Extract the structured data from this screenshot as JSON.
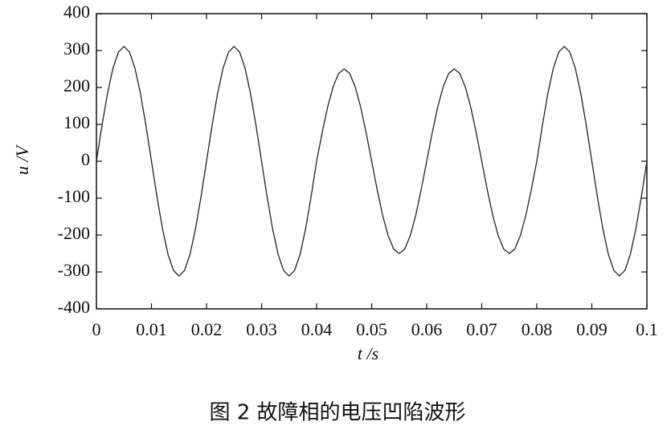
{
  "chart_data": {
    "type": "line",
    "caption": "图 2   故障相的电压凹陷波形",
    "xlabel": "t /s",
    "ylabel": "u /V",
    "x": [
      0,
      0.001,
      0.002,
      0.003,
      0.004,
      0.005,
      0.006,
      0.007,
      0.008,
      0.009,
      0.01,
      0.011,
      0.012,
      0.013,
      0.014,
      0.015,
      0.016,
      0.017,
      0.018,
      0.019,
      0.02,
      0.021,
      0.022,
      0.023,
      0.024,
      0.025,
      0.026,
      0.027,
      0.028,
      0.029,
      0.03,
      0.031,
      0.032,
      0.033,
      0.034,
      0.035,
      0.036,
      0.037,
      0.038,
      0.039,
      0.04,
      0.041,
      0.042,
      0.043,
      0.044,
      0.045,
      0.046,
      0.047,
      0.048,
      0.049,
      0.05,
      0.051,
      0.052,
      0.053,
      0.054,
      0.055,
      0.056,
      0.057,
      0.058,
      0.059,
      0.06,
      0.061,
      0.062,
      0.063,
      0.064,
      0.065,
      0.066,
      0.067,
      0.068,
      0.069,
      0.07,
      0.071,
      0.072,
      0.073,
      0.074,
      0.075,
      0.076,
      0.077,
      0.078,
      0.079,
      0.08,
      0.081,
      0.082,
      0.083,
      0.084,
      0.085,
      0.086,
      0.087,
      0.088,
      0.089,
      0.09,
      0.091,
      0.092,
      0.093,
      0.094,
      0.095,
      0.096,
      0.097,
      0.098,
      0.099,
      0.1
    ],
    "series": [
      {
        "name": "u",
        "color": "#222222",
        "values": [
          0,
          96,
          183,
          252,
          296,
          311,
          296,
          252,
          183,
          96,
          0,
          -96,
          -183,
          -252,
          -296,
          -311,
          -296,
          -252,
          -183,
          -96,
          0,
          96,
          183,
          252,
          296,
          311,
          296,
          252,
          183,
          96,
          0,
          -96,
          -183,
          -252,
          -296,
          -311,
          -296,
          -252,
          -183,
          -96,
          0,
          77,
          147,
          202,
          238,
          250,
          238,
          202,
          147,
          77,
          0,
          -77,
          -147,
          -202,
          -238,
          -250,
          -238,
          -202,
          -147,
          -77,
          0,
          77,
          147,
          202,
          238,
          250,
          238,
          202,
          147,
          77,
          0,
          -77,
          -147,
          -202,
          -238,
          -250,
          -238,
          -202,
          -147,
          -77,
          0,
          96,
          183,
          252,
          296,
          311,
          296,
          252,
          183,
          96,
          0,
          -96,
          -183,
          -252,
          -296,
          -311,
          -296,
          -252,
          -183,
          -96,
          0
        ]
      }
    ],
    "xlim": [
      0,
      0.1
    ],
    "ylim": [
      -400,
      400
    ],
    "xticks": [
      0,
      0.01,
      0.02,
      0.03,
      0.04,
      0.05,
      0.06,
      0.07,
      0.08,
      0.09,
      0.1
    ],
    "yticks": [
      -400,
      -300,
      -200,
      -100,
      0,
      100,
      200,
      300,
      400
    ]
  }
}
